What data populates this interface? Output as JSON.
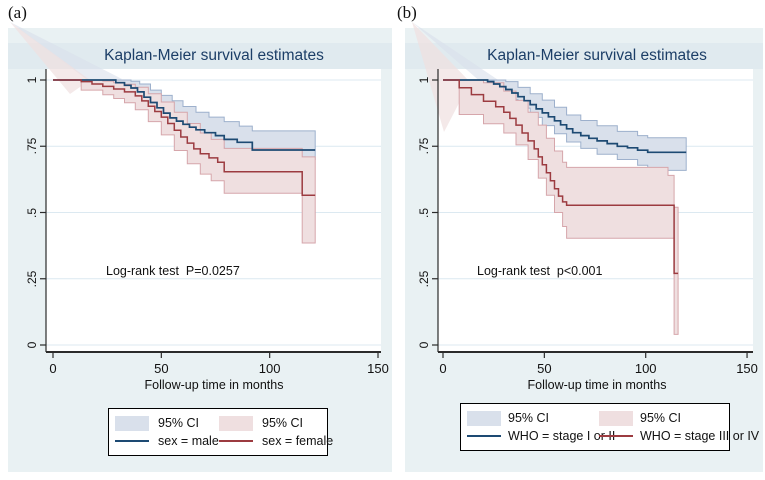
{
  "colors": {
    "panel_bg": "#e9f1f3",
    "title_band": "#e0eaef",
    "plot_bg": "#ffffff",
    "grid": "#dce9f1",
    "axis": "#2b2b2b",
    "title_text": "#1c3e67",
    "blue_line": "#1d4a73",
    "blue_fill": "#d9e0eb",
    "blue_edge": "#9db0cc",
    "red_line": "#9c3b40",
    "red_fill": "#efdfe0",
    "red_edge": "#d6a6ab",
    "legend_border": "#000000"
  },
  "chart_data": [
    {
      "type": "line",
      "panel_label": "(a)",
      "title": "Kaplan-Meier survival estimates",
      "xlabel": "Follow-up time in months",
      "ylabel": "",
      "annotation": "Log-rank test  P=0.0257",
      "xlim": [
        0,
        150
      ],
      "ylim": [
        0,
        1
      ],
      "grid": true,
      "legend_position": "bottom",
      "x_ticks": [
        {
          "v": 0,
          "label": "0"
        },
        {
          "v": 50,
          "label": "50"
        },
        {
          "v": 100,
          "label": "100"
        },
        {
          "v": 150,
          "label": "150"
        }
      ],
      "y_ticks": [
        {
          "v": 0,
          "label": "0"
        },
        {
          "v": 0.25,
          "label": ".25"
        },
        {
          "v": 0.5,
          "label": ".5"
        },
        {
          "v": 0.75,
          "label": ".75"
        },
        {
          "v": 1,
          "label": "1"
        }
      ],
      "legend": {
        "ci_labels": [
          "95% CI",
          "95% CI"
        ],
        "series_labels": [
          "sex = male",
          "sex = female"
        ]
      },
      "series": [
        {
          "name": "sex = male",
          "color": "blue",
          "steps": [
            [
              0,
              1
            ],
            [
              29,
              0.99
            ],
            [
              33,
              0.98
            ],
            [
              36,
              0.97
            ],
            [
              39,
              0.955
            ],
            [
              42,
              0.935
            ],
            [
              45,
              0.915
            ],
            [
              48,
              0.895
            ],
            [
              51,
              0.875
            ],
            [
              54,
              0.857
            ],
            [
              57,
              0.845
            ],
            [
              60,
              0.833
            ],
            [
              63,
              0.822
            ],
            [
              66,
              0.812
            ],
            [
              70,
              0.801
            ],
            [
              75,
              0.79
            ],
            [
              79,
              0.776
            ],
            [
              85,
              0.765
            ],
            [
              92,
              0.736
            ],
            [
              121,
              0.736
            ]
          ],
          "ci_upper": [
            [
              29,
              1
            ],
            [
              36,
              0.995
            ],
            [
              40,
              0.985
            ],
            [
              45,
              0.962
            ],
            [
              50,
              0.942
            ],
            [
              55,
              0.922
            ],
            [
              60,
              0.9
            ],
            [
              66,
              0.878
            ],
            [
              72,
              0.86
            ],
            [
              79,
              0.843
            ],
            [
              86,
              0.826
            ],
            [
              92,
              0.808
            ],
            [
              121,
              0.808
            ]
          ],
          "ci_lower": [
            [
              29,
              0.968
            ],
            [
              36,
              0.94
            ],
            [
              40,
              0.918
            ],
            [
              45,
              0.873
            ],
            [
              50,
              0.845
            ],
            [
              55,
              0.815
            ],
            [
              60,
              0.79
            ],
            [
              66,
              0.767
            ],
            [
              72,
              0.747
            ],
            [
              79,
              0.72
            ],
            [
              86,
              0.71
            ],
            [
              92,
              0.7
            ],
            [
              121,
              0.7
            ]
          ]
        },
        {
          "name": "sex = female",
          "color": "red",
          "steps": [
            [
              0,
              1
            ],
            [
              13,
              0.994
            ],
            [
              18,
              0.985
            ],
            [
              23,
              0.976
            ],
            [
              28,
              0.966
            ],
            [
              33,
              0.955
            ],
            [
              38,
              0.94
            ],
            [
              41,
              0.921
            ],
            [
              44,
              0.901
            ],
            [
              47,
              0.881
            ],
            [
              50,
              0.86
            ],
            [
              53,
              0.836
            ],
            [
              56,
              0.81
            ],
            [
              59,
              0.785
            ],
            [
              62,
              0.762
            ],
            [
              65,
              0.74
            ],
            [
              68,
              0.722
            ],
            [
              72,
              0.706
            ],
            [
              76,
              0.69
            ],
            [
              79,
              0.654
            ],
            [
              114,
              0.654
            ],
            [
              115,
              0.565
            ],
            [
              121,
              0.565
            ]
          ],
          "ci_upper": [
            [
              13,
              1
            ],
            [
              23,
              0.996
            ],
            [
              28,
              0.99
            ],
            [
              33,
              0.984
            ],
            [
              38,
              0.973
            ],
            [
              44,
              0.948
            ],
            [
              50,
              0.917
            ],
            [
              56,
              0.878
            ],
            [
              62,
              0.836
            ],
            [
              68,
              0.8
            ],
            [
              73,
              0.776
            ],
            [
              79,
              0.742
            ],
            [
              114,
              0.742
            ],
            [
              115,
              0.71
            ],
            [
              121,
              0.71
            ]
          ],
          "ci_lower": [
            [
              13,
              0.962
            ],
            [
              23,
              0.944
            ],
            [
              28,
              0.93
            ],
            [
              33,
              0.914
            ],
            [
              38,
              0.888
            ],
            [
              44,
              0.843
            ],
            [
              50,
              0.793
            ],
            [
              56,
              0.734
            ],
            [
              62,
              0.684
            ],
            [
              68,
              0.645
            ],
            [
              73,
              0.62
            ],
            [
              79,
              0.573
            ],
            [
              114,
              0.573
            ],
            [
              115,
              0.385
            ],
            [
              121,
              0.385
            ]
          ]
        }
      ]
    },
    {
      "type": "line",
      "panel_label": "(b)",
      "title": "Kaplan-Meier survival estimates",
      "xlabel": "Follow-up time in months",
      "ylabel": "",
      "annotation": "Log-rank test  p<0.001",
      "xlim": [
        0,
        150
      ],
      "ylim": [
        0,
        1
      ],
      "grid": true,
      "legend_position": "bottom",
      "x_ticks": [
        {
          "v": 0,
          "label": "0"
        },
        {
          "v": 50,
          "label": "50"
        },
        {
          "v": 100,
          "label": "100"
        },
        {
          "v": 150,
          "label": "150"
        }
      ],
      "y_ticks": [
        {
          "v": 0,
          "label": "0"
        },
        {
          "v": 0.25,
          "label": ".25"
        },
        {
          "v": 0.5,
          "label": ".5"
        },
        {
          "v": 0.75,
          "label": ".75"
        },
        {
          "v": 1,
          "label": "1"
        }
      ],
      "legend": {
        "ci_labels": [
          "95% CI",
          "95% CI"
        ],
        "series_labels": [
          "WHO = stage I or II",
          "WHO = stage III or IV"
        ]
      },
      "series": [
        {
          "name": "WHO = stage I or II",
          "color": "blue",
          "steps": [
            [
              0,
              1
            ],
            [
              22,
              0.994
            ],
            [
              25,
              0.985
            ],
            [
              28,
              0.975
            ],
            [
              31,
              0.964
            ],
            [
              34,
              0.951
            ],
            [
              37,
              0.937
            ],
            [
              40,
              0.922
            ],
            [
              43,
              0.907
            ],
            [
              46,
              0.891
            ],
            [
              49,
              0.876
            ],
            [
              52,
              0.861
            ],
            [
              55,
              0.846
            ],
            [
              58,
              0.831
            ],
            [
              61,
              0.816
            ],
            [
              64,
              0.801
            ],
            [
              68,
              0.79
            ],
            [
              72,
              0.78
            ],
            [
              76,
              0.77
            ],
            [
              81,
              0.76
            ],
            [
              86,
              0.75
            ],
            [
              91,
              0.744
            ],
            [
              96,
              0.735
            ],
            [
              101,
              0.727
            ],
            [
              120,
              0.727
            ]
          ],
          "ci_upper": [
            [
              22,
              1
            ],
            [
              31,
              0.994
            ],
            [
              37,
              0.972
            ],
            [
              43,
              0.948
            ],
            [
              49,
              0.924
            ],
            [
              55,
              0.897
            ],
            [
              61,
              0.868
            ],
            [
              68,
              0.847
            ],
            [
              76,
              0.827
            ],
            [
              86,
              0.806
            ],
            [
              96,
              0.79
            ],
            [
              101,
              0.782
            ],
            [
              120,
              0.782
            ]
          ],
          "ci_lower": [
            [
              22,
              0.972
            ],
            [
              31,
              0.926
            ],
            [
              37,
              0.894
            ],
            [
              43,
              0.859
            ],
            [
              49,
              0.828
            ],
            [
              55,
              0.797
            ],
            [
              61,
              0.766
            ],
            [
              68,
              0.742
            ],
            [
              76,
              0.72
            ],
            [
              86,
              0.7
            ],
            [
              96,
              0.678
            ],
            [
              101,
              0.659
            ],
            [
              120,
              0.659
            ]
          ]
        },
        {
          "name": "WHO = stage III or IV",
          "color": "red",
          "steps": [
            [
              0,
              1
            ],
            [
              8,
              0.971
            ],
            [
              14,
              0.945
            ],
            [
              20,
              0.92
            ],
            [
              26,
              0.899
            ],
            [
              30,
              0.878
            ],
            [
              33,
              0.855
            ],
            [
              36,
              0.83
            ],
            [
              39,
              0.8
            ],
            [
              42,
              0.77
            ],
            [
              45,
              0.74
            ],
            [
              47,
              0.71
            ],
            [
              49,
              0.68
            ],
            [
              51,
              0.65
            ],
            [
              53,
              0.62
            ],
            [
              55,
              0.59
            ],
            [
              57,
              0.562
            ],
            [
              59,
              0.54
            ],
            [
              61,
              0.527
            ],
            [
              113,
              0.527
            ],
            [
              114,
              0.27
            ],
            [
              116,
              0.27
            ]
          ],
          "ci_upper": [
            [
              8,
              1
            ],
            [
              20,
              0.99
            ],
            [
              30,
              0.958
            ],
            [
              36,
              0.923
            ],
            [
              42,
              0.878
            ],
            [
              47,
              0.83
            ],
            [
              51,
              0.78
            ],
            [
              55,
              0.732
            ],
            [
              59,
              0.69
            ],
            [
              61,
              0.67
            ],
            [
              110,
              0.67
            ],
            [
              111,
              0.64
            ],
            [
              113,
              0.64
            ],
            [
              114,
              0.52
            ],
            [
              116,
              0.52
            ]
          ],
          "ci_lower": [
            [
              8,
              0.87
            ],
            [
              20,
              0.835
            ],
            [
              30,
              0.8
            ],
            [
              36,
              0.755
            ],
            [
              42,
              0.7
            ],
            [
              47,
              0.63
            ],
            [
              51,
              0.565
            ],
            [
              55,
              0.5
            ],
            [
              59,
              0.447
            ],
            [
              61,
              0.403
            ],
            [
              113,
              0.403
            ],
            [
              114,
              0.04
            ],
            [
              116,
              0.04
            ]
          ]
        }
      ]
    }
  ]
}
